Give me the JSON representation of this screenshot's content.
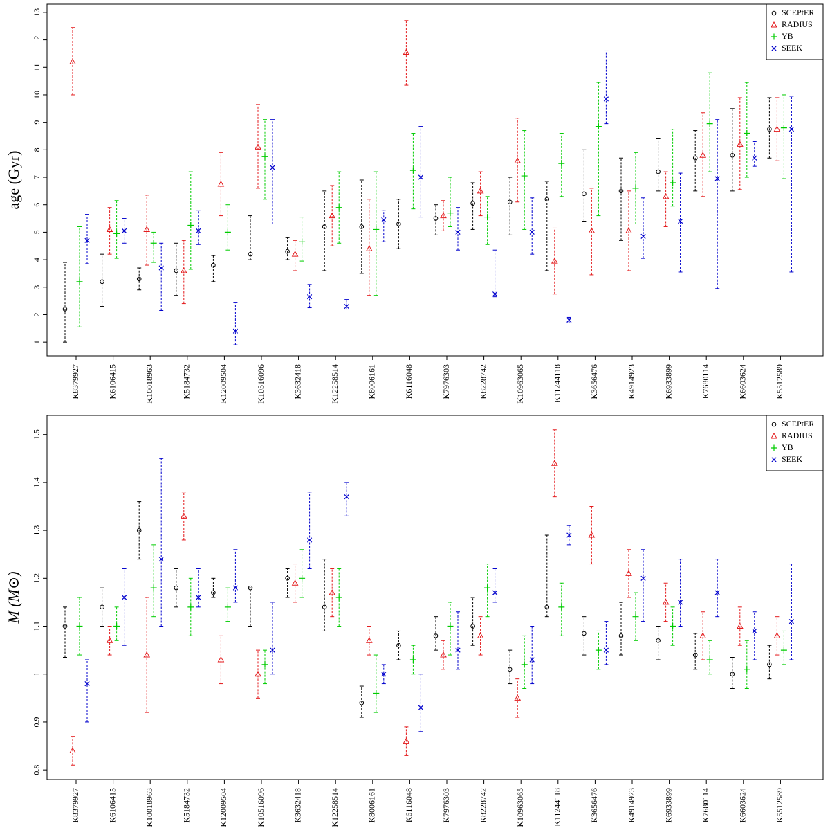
{
  "stars": [
    "K8379927",
    "K6106415",
    "K10018963",
    "K5184732",
    "K12009504",
    "K10516096",
    "K3632418",
    "K12258514",
    "K8006161",
    "K6116048",
    "K7976303",
    "K8228742",
    "K10963065",
    "K11244118",
    "K3656476",
    "K4914923",
    "K6933899",
    "K7680114",
    "K6603624",
    "K5512589"
  ],
  "legend": [
    "SCEPtER",
    "RADIUS",
    "YB",
    "SEEK"
  ],
  "colors": {
    "SCEPtER": "#000000",
    "RADIUS": "#e31a1c",
    "YB": "#00cc00",
    "SEEK": "#0000cc"
  },
  "markers": {
    "SCEPtER": "circle",
    "RADIUS": "triangle",
    "YB": "plus",
    "SEEK": "cross"
  },
  "chart_data": [
    {
      "type": "scatter",
      "ylabel": "age (Gyr)",
      "ylim": [
        0.5,
        13.3
      ],
      "yticks": [
        1,
        2,
        3,
        4,
        5,
        6,
        7,
        8,
        9,
        10,
        11,
        12,
        13
      ],
      "legend_position": "top-right",
      "series": [
        {
          "name": "SCEPtER",
          "values": [
            [
              2.2,
              1.0,
              3.9
            ],
            [
              3.2,
              2.3,
              4.2
            ],
            [
              3.3,
              2.9,
              3.7
            ],
            [
              3.6,
              2.7,
              4.6
            ],
            [
              3.8,
              3.2,
              4.15
            ],
            [
              4.2,
              4.0,
              5.6
            ],
            [
              4.3,
              4.0,
              4.8
            ],
            [
              5.2,
              3.6,
              6.5
            ],
            [
              5.2,
              3.5,
              6.9
            ],
            [
              5.3,
              4.4,
              6.2
            ],
            [
              5.5,
              4.9,
              6.0
            ],
            [
              6.05,
              5.1,
              6.8
            ],
            [
              6.1,
              4.9,
              7.0
            ],
            [
              6.2,
              3.6,
              6.85
            ],
            [
              6.4,
              5.4,
              8.0
            ],
            [
              6.5,
              4.7,
              7.7
            ],
            [
              7.2,
              6.5,
              8.4
            ],
            [
              7.7,
              6.5,
              8.7
            ],
            [
              7.8,
              6.5,
              9.5
            ],
            [
              8.75,
              7.7,
              9.9
            ]
          ]
        },
        {
          "name": "RADIUS",
          "values": [
            [
              11.2,
              10.0,
              12.45
            ],
            [
              5.1,
              4.2,
              5.9
            ],
            [
              5.1,
              3.8,
              6.35
            ],
            [
              3.6,
              2.4,
              4.7
            ],
            [
              6.75,
              5.6,
              7.9
            ],
            [
              8.1,
              6.6,
              9.65
            ],
            [
              4.2,
              3.6,
              4.7
            ],
            [
              5.6,
              4.5,
              6.7
            ],
            [
              4.4,
              2.7,
              6.2
            ],
            [
              11.55,
              10.35,
              12.7
            ],
            [
              5.6,
              5.05,
              6.15
            ],
            [
              6.5,
              5.6,
              7.2
            ],
            [
              7.6,
              6.1,
              9.15
            ],
            [
              3.95,
              2.75,
              5.15
            ],
            [
              5.05,
              3.45,
              6.6
            ],
            [
              5.05,
              3.6,
              6.5
            ],
            [
              6.3,
              5.2,
              7.2
            ],
            [
              7.8,
              6.3,
              9.35
            ],
            [
              8.2,
              6.55,
              9.9
            ],
            [
              8.75,
              7.6,
              9.9
            ]
          ]
        },
        {
          "name": "YB",
          "values": [
            [
              3.2,
              1.55,
              5.2
            ],
            [
              4.95,
              4.05,
              6.15
            ],
            [
              4.6,
              3.9,
              5.0
            ],
            [
              5.25,
              3.65,
              7.2
            ],
            [
              5.0,
              4.35,
              6.0
            ],
            [
              7.75,
              6.2,
              9.1
            ],
            [
              4.65,
              3.95,
              5.55
            ],
            [
              5.9,
              4.6,
              7.2
            ],
            [
              5.1,
              2.7,
              7.2
            ],
            [
              7.25,
              5.85,
              8.6
            ],
            [
              5.7,
              5.2,
              7.0
            ],
            [
              5.55,
              4.55,
              6.3
            ],
            [
              7.05,
              5.1,
              8.7
            ],
            [
              7.5,
              6.3,
              8.6
            ],
            [
              8.85,
              5.6,
              10.45
            ],
            [
              6.6,
              5.3,
              7.9
            ],
            [
              6.8,
              5.95,
              8.75
            ],
            [
              8.95,
              7.2,
              10.8
            ],
            [
              8.6,
              7.0,
              10.45
            ],
            [
              8.8,
              6.95,
              10.0
            ]
          ]
        },
        {
          "name": "SEEK",
          "values": [
            [
              4.7,
              3.85,
              5.65
            ],
            [
              5.05,
              4.6,
              5.5
            ],
            [
              3.7,
              2.15,
              4.6
            ],
            [
              5.05,
              4.55,
              5.8
            ],
            [
              1.4,
              0.9,
              2.45
            ],
            [
              7.35,
              5.3,
              9.1
            ],
            [
              2.65,
              2.25,
              3.1
            ],
            [
              2.3,
              2.2,
              2.55
            ],
            [
              5.45,
              4.65,
              5.8
            ],
            [
              7.0,
              5.55,
              8.85
            ],
            [
              5.0,
              4.35,
              5.9
            ],
            [
              2.75,
              2.65,
              4.35
            ],
            [
              5.0,
              4.2,
              6.25
            ],
            [
              1.8,
              1.7,
              1.9
            ],
            [
              9.85,
              8.95,
              11.6
            ],
            [
              4.85,
              4.05,
              6.25
            ],
            [
              5.4,
              3.55,
              7.15
            ],
            [
              6.95,
              2.95,
              9.1
            ],
            [
              7.7,
              7.4,
              8.3
            ],
            [
              8.75,
              3.55,
              9.95
            ]
          ]
        }
      ]
    },
    {
      "type": "scatter",
      "ylabel": "M (M⊙)",
      "ylim": [
        0.78,
        1.54
      ],
      "yticks": [
        0.8,
        0.9,
        1.0,
        1.1,
        1.2,
        1.3,
        1.4,
        1.5
      ],
      "yticklabels": [
        "0.8",
        "0.9",
        "1",
        "1.1",
        "1.2",
        "1.3",
        "1.4",
        "1.5"
      ],
      "legend_position": "top-right",
      "series": [
        {
          "name": "SCEPtER",
          "values": [
            [
              1.1,
              1.035,
              1.14
            ],
            [
              1.14,
              1.1,
              1.18
            ],
            [
              1.3,
              1.24,
              1.36
            ],
            [
              1.18,
              1.14,
              1.22
            ],
            [
              1.17,
              1.16,
              1.2
            ],
            [
              1.18,
              1.1,
              1.18
            ],
            [
              1.2,
              1.16,
              1.22
            ],
            [
              1.14,
              1.09,
              1.24
            ],
            [
              0.94,
              0.91,
              0.975
            ],
            [
              1.06,
              1.03,
              1.09
            ],
            [
              1.08,
              1.05,
              1.12
            ],
            [
              1.1,
              1.06,
              1.16
            ],
            [
              1.01,
              0.98,
              1.05
            ],
            [
              1.14,
              1.12,
              1.29
            ],
            [
              1.085,
              1.04,
              1.12
            ],
            [
              1.08,
              1.04,
              1.15
            ],
            [
              1.07,
              1.03,
              1.1
            ],
            [
              1.04,
              1.01,
              1.085
            ],
            [
              1.0,
              0.97,
              1.035
            ],
            [
              1.02,
              0.99,
              1.06
            ]
          ]
        },
        {
          "name": "RADIUS",
          "values": [
            [
              0.84,
              0.81,
              0.87
            ],
            [
              1.07,
              1.04,
              1.1
            ],
            [
              1.04,
              0.92,
              1.16
            ],
            [
              1.33,
              1.28,
              1.38
            ],
            [
              1.03,
              0.98,
              1.08
            ],
            [
              1.0,
              0.95,
              1.05
            ],
            [
              1.19,
              1.15,
              1.23
            ],
            [
              1.17,
              1.12,
              1.22
            ],
            [
              1.07,
              1.04,
              1.1
            ],
            [
              0.86,
              0.83,
              0.89
            ],
            [
              1.04,
              1.01,
              1.07
            ],
            [
              1.08,
              1.04,
              1.12
            ],
            [
              0.95,
              0.91,
              0.99
            ],
            [
              1.44,
              1.37,
              1.51
            ],
            [
              1.29,
              1.23,
              1.35
            ],
            [
              1.21,
              1.16,
              1.26
            ],
            [
              1.15,
              1.11,
              1.19
            ],
            [
              1.08,
              1.03,
              1.13
            ],
            [
              1.1,
              1.06,
              1.14
            ],
            [
              1.08,
              1.04,
              1.12
            ]
          ]
        },
        {
          "name": "YB",
          "values": [
            [
              1.1,
              1.04,
              1.16
            ],
            [
              1.1,
              1.07,
              1.14
            ],
            [
              1.18,
              1.12,
              1.27
            ],
            [
              1.14,
              1.08,
              1.2
            ],
            [
              1.14,
              1.11,
              1.18
            ],
            [
              1.02,
              0.98,
              1.05
            ],
            [
              1.2,
              1.16,
              1.26
            ],
            [
              1.16,
              1.1,
              1.22
            ],
            [
              0.96,
              0.92,
              1.04
            ],
            [
              1.03,
              1.0,
              1.06
            ],
            [
              1.1,
              1.04,
              1.15
            ],
            [
              1.18,
              1.12,
              1.23
            ],
            [
              1.02,
              0.97,
              1.08
            ],
            [
              1.14,
              1.08,
              1.19
            ],
            [
              1.05,
              1.01,
              1.09
            ],
            [
              1.12,
              1.07,
              1.17
            ],
            [
              1.1,
              1.06,
              1.14
            ],
            [
              1.03,
              1.0,
              1.07
            ],
            [
              1.01,
              0.97,
              1.07
            ],
            [
              1.05,
              1.02,
              1.09
            ]
          ]
        },
        {
          "name": "SEEK",
          "values": [
            [
              0.98,
              0.9,
              1.03
            ],
            [
              1.16,
              1.06,
              1.22
            ],
            [
              1.24,
              1.1,
              1.45
            ],
            [
              1.16,
              1.14,
              1.22
            ],
            [
              1.18,
              1.15,
              1.26
            ],
            [
              1.05,
              1.0,
              1.15
            ],
            [
              1.28,
              1.22,
              1.38
            ],
            [
              1.37,
              1.33,
              1.4
            ],
            [
              1.0,
              0.98,
              1.02
            ],
            [
              0.93,
              0.88,
              1.0
            ],
            [
              1.05,
              1.01,
              1.13
            ],
            [
              1.17,
              1.15,
              1.22
            ],
            [
              1.03,
              0.98,
              1.1
            ],
            [
              1.29,
              1.27,
              1.31
            ],
            [
              1.05,
              1.02,
              1.11
            ],
            [
              1.2,
              1.11,
              1.26
            ],
            [
              1.15,
              1.1,
              1.24
            ],
            [
              1.17,
              1.12,
              1.24
            ],
            [
              1.09,
              1.03,
              1.13
            ],
            [
              1.11,
              1.03,
              1.23
            ]
          ]
        }
      ]
    }
  ]
}
